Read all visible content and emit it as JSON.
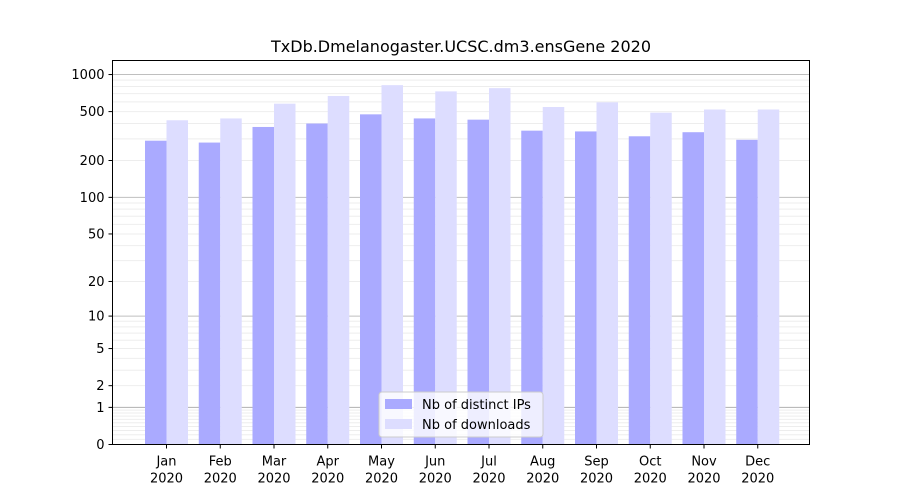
{
  "chart_data": {
    "type": "bar",
    "title": "TxDb.Dmelanogaster.UCSC.dm3.ensGene 2020",
    "xlabel": "",
    "ylabel": "",
    "y_scale": "symlog",
    "ylim": [
      0,
      1300
    ],
    "y_ticks": [
      0,
      1,
      2,
      5,
      10,
      20,
      50,
      100,
      200,
      500,
      1000
    ],
    "grid": true,
    "legend_position": "bottom-center",
    "categories": [
      "Jan",
      "Feb",
      "Mar",
      "Apr",
      "May",
      "Jun",
      "Jul",
      "Aug",
      "Sep",
      "Oct",
      "Nov",
      "Dec"
    ],
    "category_sublabels": [
      "2020",
      "2020",
      "2020",
      "2020",
      "2020",
      "2020",
      "2020",
      "2020",
      "2020",
      "2020",
      "2020",
      "2020"
    ],
    "series": [
      {
        "name": "Nb of distinct IPs",
        "color": "#aaaaff",
        "values": [
          290,
          280,
          375,
          400,
          475,
          440,
          430,
          350,
          345,
          315,
          340,
          295
        ]
      },
      {
        "name": "Nb of downloads",
        "color": "#ddddff",
        "values": [
          425,
          440,
          580,
          670,
          820,
          730,
          775,
          545,
          595,
          490,
          520,
          520
        ]
      }
    ]
  }
}
